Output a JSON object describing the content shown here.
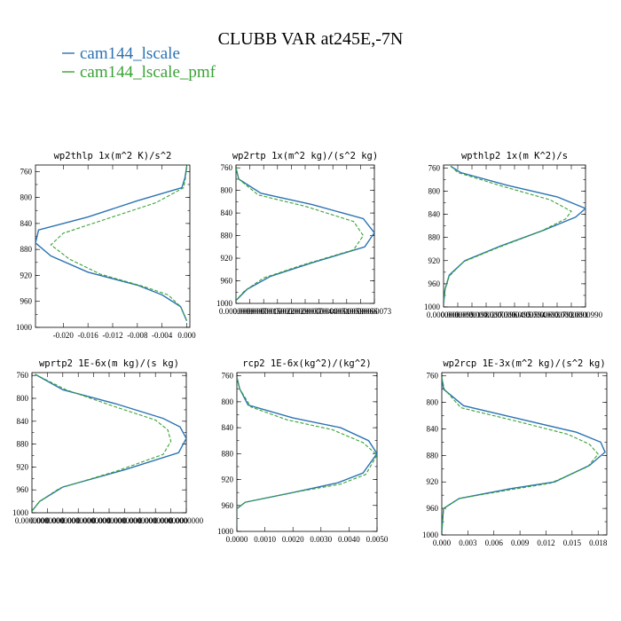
{
  "page": {
    "title": "CLUBB VAR at245E,-7N"
  },
  "colors": {
    "cam144_lscale": "#2b73b3",
    "cam144_lscale_pmf": "#3aa335"
  },
  "legend": [
    {
      "label": "cam144_lscale",
      "color": "#2b73b3",
      "style": "solid"
    },
    {
      "label": "cam144_lscale_pmf",
      "color": "#3aa335",
      "style": "dashed"
    }
  ],
  "chart_data": [
    {
      "type": "line",
      "title": "wp2thlp  1x(m^2 K)/s^2",
      "ylim": [
        760,
        1000
      ],
      "ylim_display": [
        750,
        1000
      ],
      "y_inverted": true,
      "xlim": [
        -0.0245,
        0.0005
      ],
      "xticks": [
        -0.02,
        -0.016,
        -0.012,
        -0.008,
        -0.004,
        0.0
      ],
      "xtick_labels": [
        "-0.020",
        "-0.016",
        "-0.012",
        "-0.008",
        "-0.004",
        "0.000"
      ],
      "yticks": [
        760,
        800,
        840,
        880,
        920,
        960,
        1000
      ],
      "series": [
        {
          "name": "cam144_lscale",
          "x": [
            0.0,
            -0.0003,
            -0.0008,
            -0.008,
            -0.016,
            -0.024,
            -0.0245,
            -0.022,
            -0.016,
            -0.008,
            -0.004,
            -0.001,
            0.0
          ],
          "y": [
            752,
            770,
            785,
            805,
            830,
            850,
            870,
            890,
            915,
            935,
            950,
            968,
            990
          ]
        },
        {
          "name": "cam144_lscale_pmf",
          "x": [
            0.0,
            -0.0002,
            -0.0005,
            -0.005,
            -0.013,
            -0.02,
            -0.022,
            -0.019,
            -0.014,
            -0.007,
            -0.003,
            -0.001,
            0.0
          ],
          "y": [
            752,
            770,
            785,
            808,
            833,
            855,
            873,
            895,
            918,
            937,
            950,
            968,
            990
          ]
        }
      ]
    },
    {
      "type": "line",
      "title": "wp2rtp  1x(m^2 kg)/(s^2 kg)",
      "ylim": [
        760,
        1000
      ],
      "ylim_display": [
        755,
        1000
      ],
      "y_inverted": true,
      "xlim": [
        0.0,
        1.0
      ],
      "xticks": [
        0.0,
        0.1,
        0.2,
        0.3,
        0.4,
        0.5,
        0.6,
        0.7,
        0.8,
        0.9,
        1.0
      ],
      "xtick_labels": [
        "0.0000000",
        "0.0000007",
        "0.0000015",
        "0.0000022",
        "0.0000029",
        "0.0000037",
        "0.0000044",
        "0.0000051",
        "0.0000059",
        "0.0000066",
        "0.0000073"
      ],
      "yticks": [
        760,
        800,
        840,
        880,
        920,
        960,
        1000
      ],
      "series": [
        {
          "name": "cam144_lscale",
          "x": [
            0.0,
            0.02,
            0.18,
            0.55,
            0.92,
            1.0,
            0.93,
            0.55,
            0.25,
            0.08,
            0.0
          ],
          "y": [
            760,
            780,
            805,
            825,
            850,
            875,
            900,
            928,
            952,
            975,
            995
          ]
        },
        {
          "name": "cam144_lscale_pmf",
          "x": [
            0.0,
            0.02,
            0.16,
            0.5,
            0.85,
            0.92,
            0.85,
            0.48,
            0.2,
            0.06,
            0.0
          ],
          "y": [
            760,
            780,
            808,
            828,
            855,
            880,
            905,
            932,
            955,
            978,
            995
          ]
        }
      ]
    },
    {
      "type": "line",
      "title": "wpthlp2  1x(m K^2)/s",
      "ylim": [
        760,
        1000
      ],
      "ylim_display": [
        755,
        1000
      ],
      "y_inverted": true,
      "xlim": [
        0.0,
        1.0
      ],
      "xticks": [
        0.0,
        0.1,
        0.2,
        0.3,
        0.4,
        0.5,
        0.6,
        0.7,
        0.8,
        0.9,
        1.0
      ],
      "xtick_labels": [
        "0.0000000",
        "0.0000099",
        "0.0000198",
        "0.0000297",
        "0.0000396",
        "0.0000495",
        "0.0000594",
        "0.0000693",
        "0.0000792",
        "0.0000891",
        "0.0000990"
      ],
      "yticks": [
        760,
        800,
        840,
        880,
        920,
        960,
        1000
      ],
      "series": [
        {
          "name": "cam144_lscale",
          "x": [
            0.05,
            0.12,
            0.45,
            0.8,
            1.0,
            0.93,
            0.7,
            0.4,
            0.15,
            0.04,
            0.01,
            0.0
          ],
          "y": [
            757,
            768,
            790,
            810,
            830,
            845,
            868,
            895,
            920,
            945,
            970,
            995
          ]
        },
        {
          "name": "cam144_lscale_pmf",
          "x": [
            0.05,
            0.1,
            0.42,
            0.75,
            0.9,
            0.86,
            0.68,
            0.39,
            0.14,
            0.04,
            0.01,
            0.0
          ],
          "y": [
            757,
            768,
            792,
            815,
            835,
            848,
            870,
            897,
            922,
            947,
            970,
            995
          ]
        }
      ]
    },
    {
      "type": "line",
      "title": "wprtp2  1E-6x(m kg)/(s kg)",
      "ylim": [
        760,
        1000
      ],
      "ylim_display": [
        755,
        1000
      ],
      "y_inverted": true,
      "xlim": [
        0.0,
        1.0
      ],
      "xticks": [
        0.0,
        0.1,
        0.2,
        0.3,
        0.4,
        0.5,
        0.6,
        0.7,
        0.8,
        0.9,
        1.0
      ],
      "xtick_labels": [
        "0.0000000",
        "0.0000000",
        "0.0000000",
        "0.0000000",
        "0.0000000",
        "0.0000000",
        "0.0000000",
        "0.0000000",
        "0.0000000",
        "0.0000000",
        "0.0000000"
      ],
      "yticks": [
        760,
        800,
        840,
        880,
        920,
        960,
        1000
      ],
      "series": [
        {
          "name": "cam144_lscale",
          "x": [
            0.02,
            0.2,
            0.55,
            0.85,
            0.96,
            1.0,
            0.95,
            0.6,
            0.2,
            0.05,
            0.0
          ],
          "y": [
            758,
            785,
            810,
            835,
            850,
            870,
            895,
            925,
            955,
            980,
            997
          ]
        },
        {
          "name": "cam144_lscale_pmf",
          "x": [
            0.02,
            0.22,
            0.52,
            0.8,
            0.88,
            0.9,
            0.85,
            0.55,
            0.18,
            0.05,
            0.0
          ],
          "y": [
            758,
            785,
            813,
            838,
            855,
            875,
            898,
            927,
            957,
            980,
            997
          ]
        }
      ]
    },
    {
      "type": "line",
      "title": "rcp2  1E-6x(kg^2)/(kg^2)",
      "ylim": [
        760,
        1000
      ],
      "ylim_display": [
        755,
        1000
      ],
      "y_inverted": true,
      "xlim": [
        0.0,
        0.005
      ],
      "xticks": [
        0.0,
        0.001,
        0.002,
        0.003,
        0.004,
        0.005
      ],
      "xtick_labels": [
        "0.0000",
        "0.0010",
        "0.0020",
        "0.0030",
        "0.0040",
        "0.0050"
      ],
      "yticks": [
        760,
        800,
        840,
        880,
        920,
        960,
        1000
      ],
      "series": [
        {
          "name": "cam144_lscale",
          "x": [
            0.0,
            0.0001,
            0.0004,
            0.002,
            0.0037,
            0.0047,
            0.005,
            0.0045,
            0.0036,
            0.002,
            0.0003,
            0.0,
            0.0
          ],
          "y": [
            762,
            780,
            805,
            825,
            840,
            860,
            880,
            910,
            925,
            940,
            955,
            965,
            995
          ]
        },
        {
          "name": "cam144_lscale_pmf",
          "x": [
            0.0,
            0.0001,
            0.0005,
            0.0018,
            0.0034,
            0.0045,
            0.005,
            0.0046,
            0.0037,
            0.002,
            0.0003,
            0.0,
            0.0
          ],
          "y": [
            762,
            780,
            808,
            828,
            843,
            863,
            882,
            912,
            927,
            940,
            955,
            965,
            995
          ]
        }
      ]
    },
    {
      "type": "line",
      "title": "wp2rcp  1E-3x(m^2 kg)/(s^2 kg)",
      "ylim": [
        760,
        1000
      ],
      "ylim_display": [
        755,
        1000
      ],
      "y_inverted": true,
      "xlim": [
        0.0,
        0.019
      ],
      "xticks": [
        0.0,
        0.003,
        0.006,
        0.009,
        0.012,
        0.015,
        0.018
      ],
      "xtick_labels": [
        "0.000",
        "0.003",
        "0.006",
        "0.009",
        "0.012",
        "0.015",
        "0.018"
      ],
      "yticks": [
        760,
        800,
        840,
        880,
        920,
        960,
        1000
      ],
      "series": [
        {
          "name": "cam144_lscale",
          "x": [
            0.0,
            0.0002,
            0.0025,
            0.009,
            0.0155,
            0.0183,
            0.0188,
            0.017,
            0.013,
            0.008,
            0.002,
            0.0002,
            0.0
          ],
          "y": [
            762,
            780,
            805,
            825,
            845,
            860,
            875,
            895,
            920,
            930,
            945,
            960,
            995
          ]
        },
        {
          "name": "cam144_lscale_pmf",
          "x": [
            0.0,
            0.0003,
            0.0022,
            0.0085,
            0.0145,
            0.017,
            0.018,
            0.0168,
            0.0125,
            0.0078,
            0.002,
            0.0002,
            0.0
          ],
          "y": [
            762,
            780,
            808,
            828,
            848,
            863,
            878,
            897,
            922,
            932,
            945,
            960,
            995
          ]
        }
      ]
    }
  ]
}
